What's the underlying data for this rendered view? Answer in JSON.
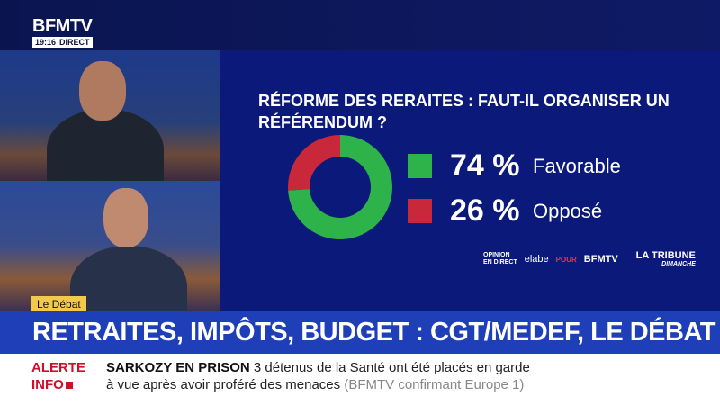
{
  "channel": {
    "logo": "BFMTV",
    "time": "19:16",
    "live": "DIRECT"
  },
  "panel": {
    "question": "RÉFORME DES RERAITES : FAUT-IL ORGANISER UN RÉFÉRENDUM ?",
    "credits": {
      "opinion": "OPINION",
      "en_direct": "EN DIRECT",
      "elabe": "elabe",
      "pour": "POUR",
      "bfmtv": "BFMTV",
      "tribune": "LA TRIBUNE",
      "dimanche": "DIMANCHE"
    }
  },
  "chart_data": {
    "type": "pie",
    "title": "RÉFORME DES RERAITES : FAUT-IL ORGANISER UN RÉFÉRENDUM ?",
    "categories": [
      "Favorable",
      "Opposé"
    ],
    "values": [
      74,
      26
    ],
    "labels": [
      "74 %",
      "26 %"
    ],
    "colors": [
      "#2db34a",
      "#c8283a"
    ]
  },
  "tag": "Le Débat",
  "headline": "RETRAITES, IMPÔTS, BUDGET : CGT/MEDEF, LE DÉBAT",
  "ticker": {
    "alerte": "ALERTE",
    "info": "INFO",
    "title": "SARKOZY EN PRISON",
    "line1": "3 détenus de la Santé ont été placés en garde",
    "line2": "à vue après avoir proféré des menaces",
    "source": "(BFMTV confirmant Europe 1)"
  }
}
